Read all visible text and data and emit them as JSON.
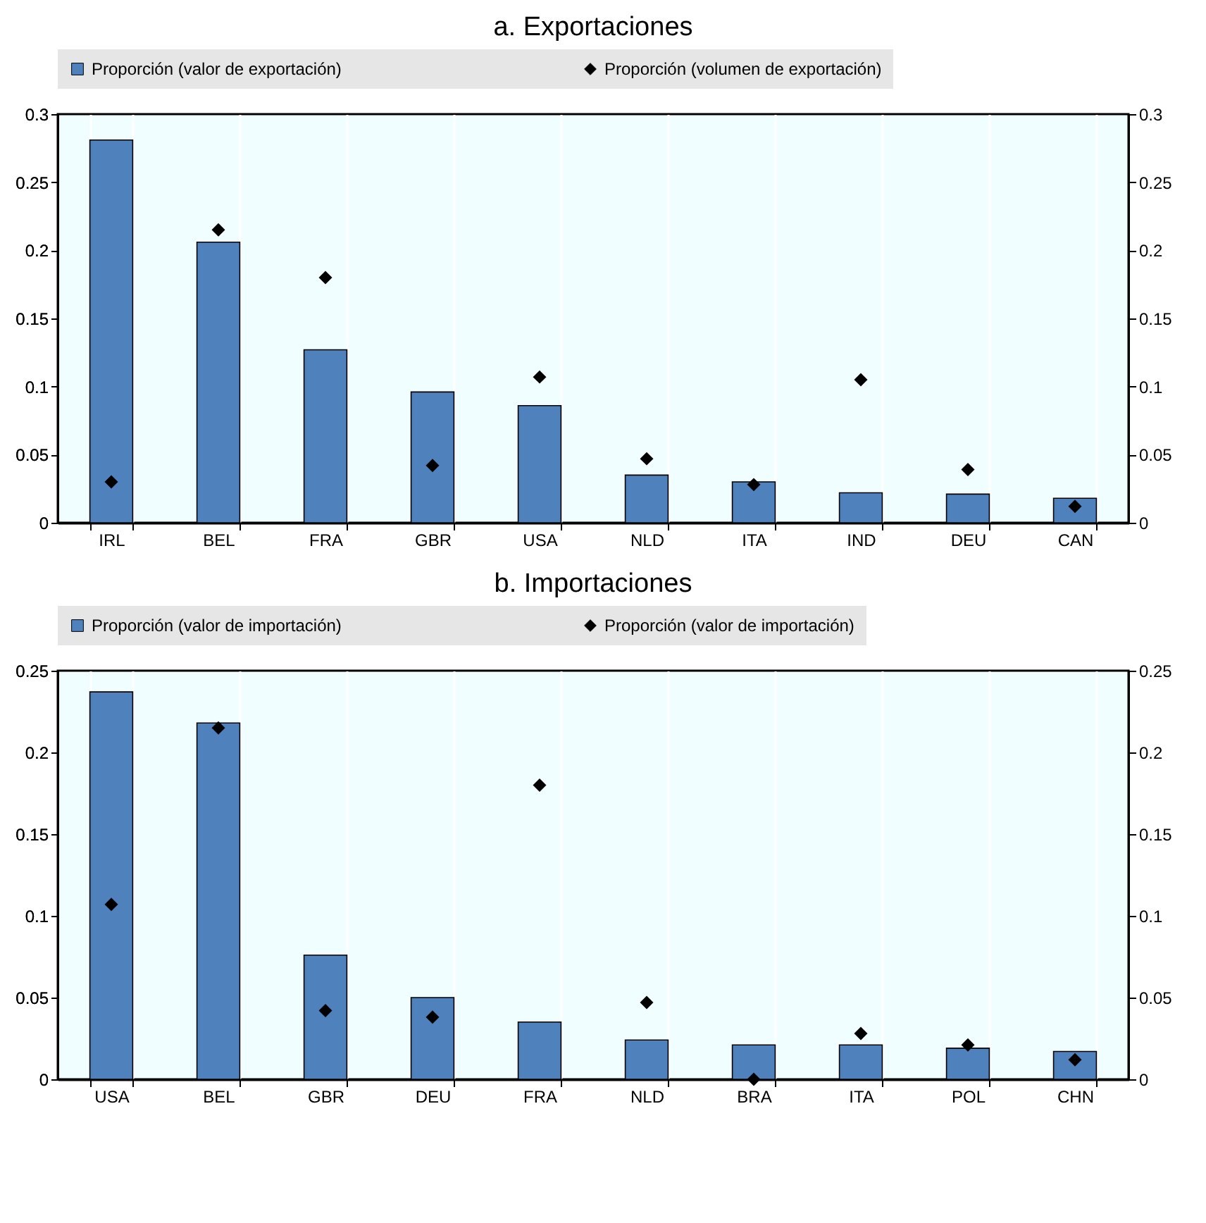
{
  "chart_data": [
    {
      "type": "bar",
      "title": "a. Exportaciones",
      "categories": [
        "IRL",
        "BEL",
        "FRA",
        "GBR",
        "USA",
        "NLD",
        "ITA",
        "IND",
        "DEU",
        "CAN"
      ],
      "series": [
        {
          "name": "Proporción (valor de exportación)",
          "color": "#4f81bd",
          "values": [
            0.281,
            0.206,
            0.127,
            0.096,
            0.086,
            0.035,
            0.03,
            0.022,
            0.021,
            0.018
          ]
        },
        {
          "name": "Proporción (volumen de exportación)",
          "type": "scatter",
          "marker": "diamond",
          "color": "#000000",
          "values": [
            0.03,
            0.215,
            0.18,
            0.042,
            0.107,
            0.047,
            0.028,
            0.105,
            0.039,
            0.012
          ]
        }
      ],
      "ylim": [
        0,
        0.3
      ],
      "yticks": [
        0,
        0.05,
        0.1,
        0.15,
        0.2,
        0.25,
        0.3
      ],
      "y2lim": [
        0,
        0.3
      ],
      "y2ticks": [
        0,
        0.05,
        0.1,
        0.15,
        0.2,
        0.25,
        0.3
      ],
      "grid": "x",
      "legend": "top"
    },
    {
      "type": "bar",
      "title": "b. Importaciones",
      "categories": [
        "USA",
        "BEL",
        "GBR",
        "DEU",
        "FRA",
        "NLD",
        "BRA",
        "ITA",
        "POL",
        "CHN"
      ],
      "series": [
        {
          "name": "Proporción (valor de importación)",
          "color": "#4f81bd",
          "values": [
            0.237,
            0.218,
            0.076,
            0.05,
            0.035,
            0.024,
            0.021,
            0.021,
            0.019,
            0.017
          ]
        },
        {
          "name": "Proporción (valor de importación)",
          "type": "scatter",
          "marker": "diamond",
          "color": "#000000",
          "values": [
            0.107,
            0.215,
            0.042,
            0.038,
            0.18,
            0.047,
            0.0,
            0.028,
            0.021,
            0.012
          ]
        }
      ],
      "ylim": [
        0,
        0.25
      ],
      "yticks": [
        0,
        0.05,
        0.1,
        0.15,
        0.2,
        0.25
      ],
      "y2lim": [
        0,
        0.25
      ],
      "y2ticks": [
        0,
        0.05,
        0.1,
        0.15,
        0.2,
        0.25
      ],
      "grid": "x",
      "legend": "top"
    }
  ]
}
